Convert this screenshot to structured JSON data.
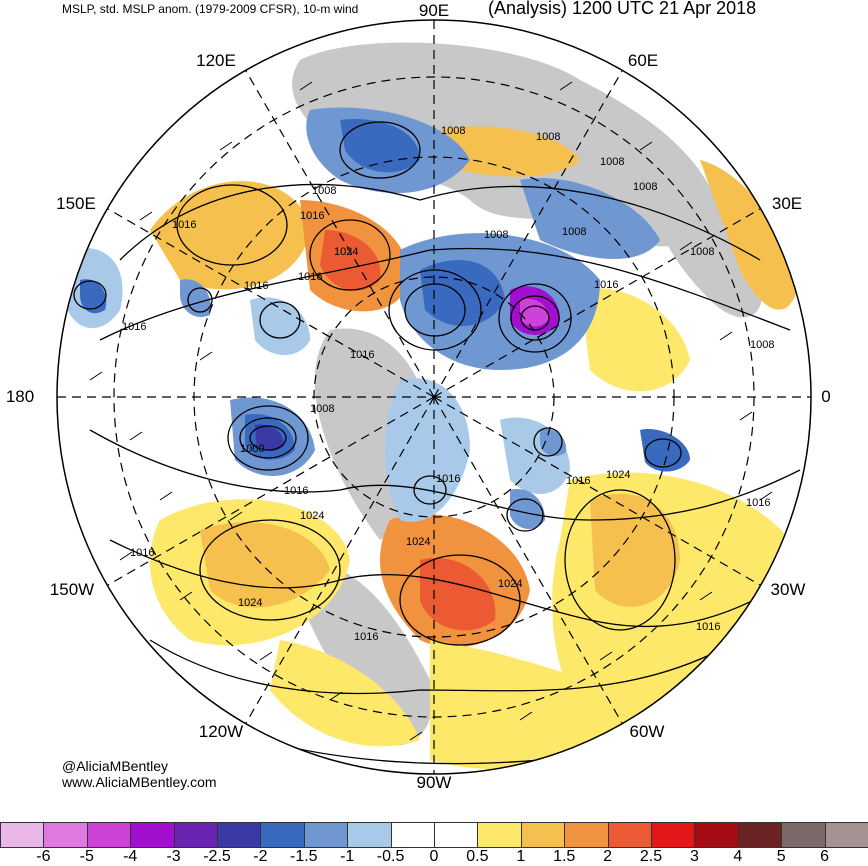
{
  "header": {
    "left_title": "MSLP, std. MSLP anom. (1979-2009 CFSR), 10-m wind",
    "right_title": "(Analysis) 1200 UTC 21 Apr 2018"
  },
  "credits": {
    "handle": "@AliciaMBentley",
    "website": "www.AliciaMBentley.com"
  },
  "longitude_labels": {
    "lon_90e": "90E",
    "lon_60e": "60E",
    "lon_120e": "120E",
    "lon_150e": "150E",
    "lon_30e": "30E",
    "lon_180": "180",
    "lon_0": "0",
    "lon_150w": "150W",
    "lon_30w": "30W",
    "lon_120w": "120W",
    "lon_60w": "60W",
    "lon_90w": "90W"
  },
  "isobar_labels": [
    "1008",
    "1008",
    "1008",
    "1008",
    "1008",
    "1008",
    "1008",
    "1008",
    "1008",
    "1008",
    "1016",
    "1016",
    "1016",
    "1016",
    "1016",
    "1016",
    "1016",
    "1016",
    "1016",
    "1016",
    "1016",
    "1016",
    "1016",
    "1016",
    "1024",
    "1024",
    "1024",
    "1024",
    "1024",
    "1024",
    "1000"
  ],
  "colorbar": {
    "labels": [
      "-6",
      "-5",
      "-4",
      "-3",
      "-2.5",
      "-2",
      "-1.5",
      "-1",
      "-0.5",
      "0",
      "0.5",
      "1",
      "1.5",
      "2",
      "2.5",
      "3",
      "4",
      "5",
      "6"
    ],
    "colors": [
      "#e9b8e8",
      "#e278e2",
      "#cf42d9",
      "#a20fd0",
      "#6a23b2",
      "#3a3aa6",
      "#3a69c0",
      "#6f97d2",
      "#a9c9e8",
      "#ffffff",
      "#ffffff",
      "#fde86a",
      "#f5c04e",
      "#f1923e",
      "#eb5a33",
      "#e2171a",
      "#a50c12",
      "#6b2222",
      "#7a6a6a",
      "#a49393"
    ]
  }
}
